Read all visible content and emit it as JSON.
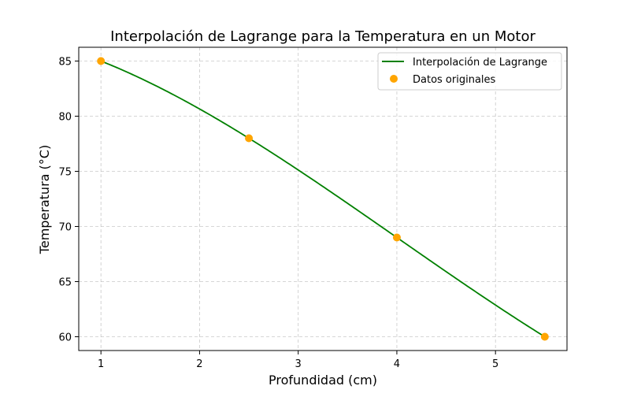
{
  "chart_data": {
    "type": "line",
    "title": "Interpolación de Lagrange para la Temperatura en un Motor",
    "xlabel": "Profundidad (cm)",
    "ylabel": "Temperatura (°C)",
    "xlim": [
      0.775,
      5.725
    ],
    "ylim": [
      58.75,
      86.25
    ],
    "xticks": [
      1,
      2,
      3,
      4,
      5
    ],
    "yticks": [
      60,
      65,
      70,
      75,
      80,
      85
    ],
    "grid": true,
    "legend_position": "top-right",
    "series": [
      {
        "name": "Interpolación de Lagrange",
        "kind": "line",
        "color": "#008000",
        "x": [
          1.0,
          2.5,
          4.0,
          5.5
        ],
        "y": [
          85.0,
          78.0,
          69.0,
          60.0
        ]
      },
      {
        "name": "Datos originales",
        "kind": "scatter",
        "color": "#ffa500",
        "x": [
          1.0,
          2.5,
          4.0,
          5.5
        ],
        "y": [
          85.0,
          78.0,
          69.0,
          60.0
        ]
      }
    ]
  }
}
